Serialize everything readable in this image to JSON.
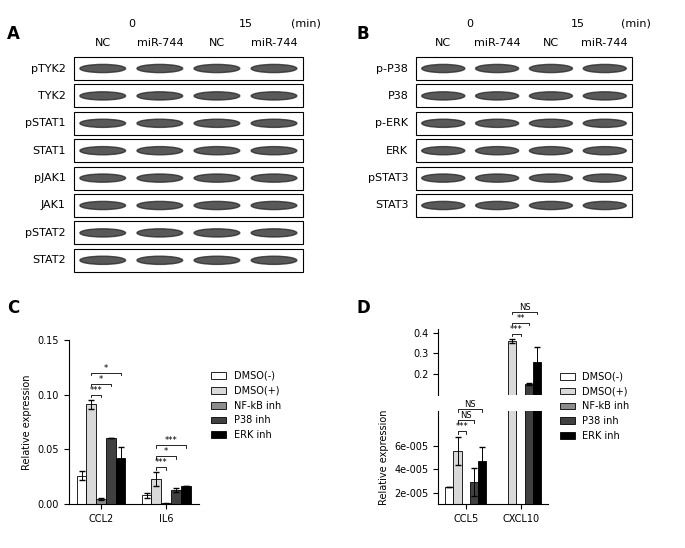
{
  "blots": [
    {
      "panel": "A",
      "time_unit": "(min)",
      "time_groups": [
        {
          "label": "0",
          "lanes": [
            "NC",
            "miR-744"
          ]
        },
        {
          "label": "15",
          "lanes": [
            "NC",
            "miR-744"
          ]
        }
      ],
      "rows": [
        "pTYK2",
        "TYK2",
        "pSTAT1",
        "STAT1",
        "pJAK1",
        "JAK1",
        "pSTAT2",
        "STAT2"
      ]
    },
    {
      "panel": "B",
      "time_unit": "(min)",
      "time_groups": [
        {
          "label": "0",
          "lanes": [
            "NC",
            "miR-744"
          ]
        },
        {
          "label": "15",
          "lanes": [
            "NC",
            "miR-744"
          ]
        }
      ],
      "rows": [
        "p-P38",
        "P38",
        "p-ERK",
        "ERK",
        "pSTAT3",
        "STAT3"
      ]
    }
  ],
  "chart_data": [
    {
      "panel": "C",
      "type": "bar",
      "categories": [
        "CCL2",
        "IL6"
      ],
      "ylabel": "Relative expression",
      "ylim": [
        0,
        0.15
      ],
      "yticks": [
        {
          "value": 0,
          "label": "0.00"
        },
        0.05,
        {
          "value": 0.1,
          "label": "0.10"
        },
        0.15
      ],
      "legend": "right",
      "series": [
        {
          "name": "DMSO(-)",
          "color": "#ffffff",
          "values": [
            0.026,
            0.008
          ],
          "errors": [
            0.004,
            0.002
          ]
        },
        {
          "name": "DMSO(+)",
          "color": "#d9d9d9",
          "values": [
            0.091,
            0.023
          ],
          "errors": [
            0.004,
            0.006
          ]
        },
        {
          "name": "NF-kB inh",
          "color": "#8c8c8c",
          "values": [
            0.005,
            0.001
          ],
          "errors": [
            0.001,
            0.0005
          ]
        },
        {
          "name": "P38 inh",
          "color": "#404040",
          "values": [
            0.06,
            0.013
          ],
          "errors": [
            0.0,
            0.002
          ]
        },
        {
          "name": "ERK inh",
          "color": "#000000",
          "values": [
            0.042,
            0.017
          ],
          "errors": [
            0.01,
            0.0
          ]
        }
      ],
      "significance": [
        {
          "category": "CCL2",
          "from": "DMSO(+)",
          "to": "NF-kB inh",
          "label": "***"
        },
        {
          "category": "CCL2",
          "from": "DMSO(+)",
          "to": "P38 inh",
          "label": "*"
        },
        {
          "category": "CCL2",
          "from": "DMSO(+)",
          "to": "ERK inh",
          "label": "*"
        },
        {
          "category": "IL6",
          "from": "DMSO(+)",
          "to": "NF-kB inh",
          "label": "***"
        },
        {
          "category": "IL6",
          "from": "DMSO(+)",
          "to": "P38 inh",
          "label": "*"
        },
        {
          "category": "IL6",
          "from": "DMSO(+)",
          "to": "ERK inh",
          "label": "***"
        }
      ]
    },
    {
      "panel": "D",
      "type": "bar",
      "categories": [
        "CCL5",
        "CXCL10"
      ],
      "ylabel": "Relative expression",
      "segments": [
        {
          "ylim": [
            1e-05,
            9e-05
          ],
          "yticks": [
            {
              "value": 2e-05,
              "label": "2e-005"
            },
            {
              "value": 4e-05,
              "label": "4e-005"
            },
            {
              "value": 6e-05,
              "label": "6e-005"
            }
          ]
        },
        {
          "ylim": [
            0.1,
            0.42
          ],
          "yticks": [
            0.2,
            0.3,
            0.4
          ]
        }
      ],
      "legend": "right",
      "series": [
        {
          "name": "DMSO(-)",
          "color": "#ffffff",
          "values": [
            2.5e-05,
            0
          ],
          "errors": [
            0,
            0
          ]
        },
        {
          "name": "DMSO(+)",
          "color": "#d9d9d9",
          "values": [
            5.6e-05,
            0.36
          ],
          "errors": [
            1.2e-05,
            0.01
          ]
        },
        {
          "name": "NF-kB inh",
          "color": "#8c8c8c",
          "values": [
            0,
            0
          ],
          "errors": [
            0,
            0
          ]
        },
        {
          "name": "P38 inh",
          "color": "#404040",
          "values": [
            2.9e-05,
            0.15
          ],
          "errors": [
            1.2e-05,
            0.005
          ]
        },
        {
          "name": "ERK inh",
          "color": "#000000",
          "values": [
            4.7e-05,
            0.26
          ],
          "errors": [
            1.2e-05,
            0.07
          ]
        }
      ],
      "significance": [
        {
          "category": "CCL5",
          "from": "DMSO(+)",
          "to": "NF-kB inh",
          "label": "***"
        },
        {
          "category": "CCL5",
          "from": "DMSO(+)",
          "to": "P38 inh",
          "label": "NS"
        },
        {
          "category": "CCL5",
          "from": "DMSO(+)",
          "to": "ERK inh",
          "label": "NS"
        },
        {
          "category": "CXCL10",
          "from": "DMSO(+)",
          "to": "NF-kB inh",
          "label": "***"
        },
        {
          "category": "CXCL10",
          "from": "DMSO(+)",
          "to": "P38 inh",
          "label": "**"
        },
        {
          "category": "CXCL10",
          "from": "DMSO(+)",
          "to": "ERK inh",
          "label": "NS"
        }
      ]
    }
  ]
}
